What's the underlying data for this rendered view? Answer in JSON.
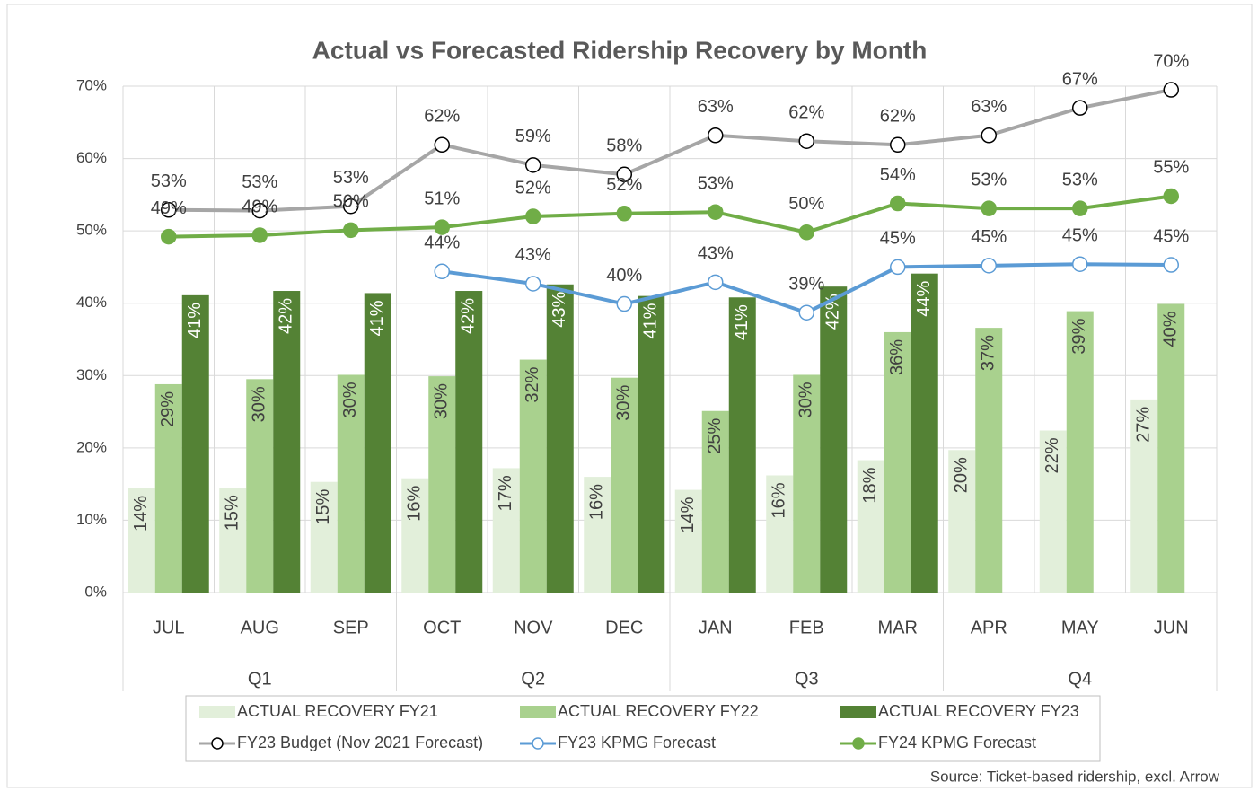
{
  "chart_data": {
    "type": "bar",
    "title": "Actual vs Forecasted Ridership Recovery by Month",
    "categories": [
      "JUL",
      "AUG",
      "SEP",
      "OCT",
      "NOV",
      "DEC",
      "JAN",
      "FEB",
      "MAR",
      "APR",
      "MAY",
      "JUN"
    ],
    "quarters": [
      "Q1",
      "Q2",
      "Q3",
      "Q4"
    ],
    "ylim": [
      0,
      70
    ],
    "yticks": [
      {
        "value": 0,
        "label": "0%"
      },
      {
        "value": 10,
        "label": "10%"
      },
      {
        "value": 20,
        "label": "20%"
      },
      {
        "value": 30,
        "label": "30%"
      },
      {
        "value": 40,
        "label": "40%"
      },
      {
        "value": 50,
        "label": "50%"
      },
      {
        "value": 60,
        "label": "60%"
      },
      {
        "value": 70,
        "label": "70%"
      }
    ],
    "grid": true,
    "series": [
      {
        "name": "ACTUAL RECOVERY FY21",
        "type": "bar",
        "color": "#e2efda",
        "values": [
          14.4,
          14.5,
          15.3,
          15.8,
          17.2,
          16.0,
          14.2,
          16.2,
          18.3,
          19.7,
          22.4,
          26.7
        ],
        "value_labels": [
          "14%",
          "15%",
          "15%",
          "16%",
          "17%",
          "16%",
          "14%",
          "16%",
          "18%",
          "20%",
          "22%",
          "27%"
        ]
      },
      {
        "name": "ACTUAL RECOVERY FY22",
        "type": "bar",
        "color": "#a9d18e",
        "values": [
          28.8,
          29.5,
          30.1,
          29.9,
          32.2,
          29.7,
          25.1,
          30.1,
          36.0,
          36.6,
          38.9,
          39.9
        ],
        "value_labels": [
          "29%",
          "30%",
          "30%",
          "30%",
          "32%",
          "30%",
          "25%",
          "30%",
          "36%",
          "37%",
          "39%",
          "40%"
        ]
      },
      {
        "name": "ACTUAL RECOVERY FY23",
        "type": "bar",
        "color": "#548235",
        "values": [
          41.1,
          41.7,
          41.4,
          41.7,
          42.6,
          41.0,
          40.8,
          42.3,
          44.1,
          null,
          null,
          null
        ],
        "value_labels": [
          "41%",
          "42%",
          "41%",
          "42%",
          "43%",
          "41%",
          "41%",
          "42%",
          "44%",
          null,
          null,
          null
        ]
      },
      {
        "name": "FY23 Budget (Nov 2021 Forecast)",
        "type": "line",
        "color": "#a6a6a6",
        "marker_fill": "#ffffff",
        "marker_stroke": "#000000",
        "values": [
          52.9,
          52.8,
          53.4,
          61.9,
          59.1,
          57.8,
          63.2,
          62.4,
          61.9,
          63.2,
          67.0,
          69.5
        ],
        "value_labels": [
          "53%",
          "53%",
          "53%",
          "62%",
          "59%",
          "58%",
          "63%",
          "62%",
          "62%",
          "63%",
          "67%",
          "70%"
        ]
      },
      {
        "name": "FY23 KPMG Forecast",
        "type": "line",
        "color": "#5b9bd5",
        "marker_fill": "#ffffff",
        "marker_stroke": "#5b9bd5",
        "values": [
          null,
          null,
          null,
          44.4,
          42.7,
          39.9,
          42.9,
          38.7,
          45.0,
          45.2,
          45.4,
          45.3
        ],
        "value_labels": [
          null,
          null,
          null,
          "44%",
          "43%",
          "40%",
          "43%",
          "39%",
          "45%",
          "45%",
          "45%",
          "45%"
        ]
      },
      {
        "name": "FY24 KPMG Forecast",
        "type": "line",
        "color": "#70ad47",
        "marker_fill": "#70ad47",
        "marker_stroke": "#70ad47",
        "values": [
          49.2,
          49.4,
          50.1,
          50.5,
          52.0,
          52.4,
          52.6,
          49.8,
          53.8,
          53.1,
          53.1,
          54.8
        ],
        "value_labels": [
          "49%",
          "49%",
          "50%",
          "51%",
          "52%",
          "52%",
          "53%",
          "50%",
          "54%",
          "53%",
          "53%",
          "55%"
        ]
      }
    ],
    "source": "Source: Ticket-based ridership, excl. Arrow"
  }
}
